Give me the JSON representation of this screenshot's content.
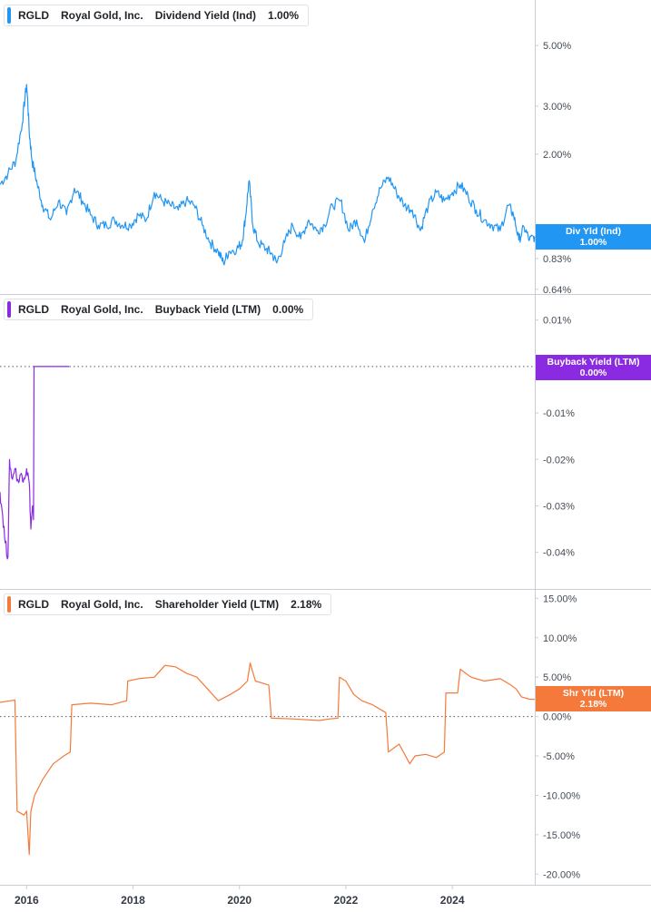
{
  "colors": {
    "div": "#2196f3",
    "buyback": "#8a2be2",
    "shareholder": "#f5793a",
    "axis": "#c9ced6"
  },
  "x_axis": {
    "ticks": [
      "2016",
      "2018",
      "2020",
      "2022",
      "2024"
    ],
    "range": [
      2015.5,
      2025.55
    ]
  },
  "panels": [
    {
      "id": "div",
      "legend": {
        "ticker": "RGLD",
        "company": "Royal Gold, Inc.",
        "metric": "Dividend Yield (Ind)",
        "value": "1.00%"
      },
      "tag": {
        "label": "Div Yld (Ind)",
        "value": "1.00%"
      }
    },
    {
      "id": "buyback",
      "legend": {
        "ticker": "RGLD",
        "company": "Royal Gold, Inc.",
        "metric": "Buyback Yield (LTM)",
        "value": "0.00%"
      },
      "tag": {
        "label": "Buyback Yield (LTM)",
        "value": "0.00%"
      }
    },
    {
      "id": "shareholder",
      "legend": {
        "ticker": "RGLD",
        "company": "Royal Gold, Inc.",
        "metric": "Shareholder Yield (LTM)",
        "value": "2.18%"
      },
      "tag": {
        "label": "Shr Yld (LTM)",
        "value": "2.18%"
      }
    }
  ],
  "chart_data": [
    {
      "type": "line",
      "scale": "log",
      "yticks": [
        "5.00%",
        "3.00%",
        "2.00%",
        "1.00%",
        "0.83%",
        "0.64%"
      ],
      "ytick_values": [
        5.0,
        3.0,
        2.0,
        1.0,
        0.83,
        0.64
      ],
      "ylim": [
        0.62,
        6.3
      ],
      "series": [
        {
          "name": "Dividend Yield (Ind)",
          "x": [
            2015.5,
            2015.65,
            2015.8,
            2015.92,
            2016.0,
            2016.05,
            2016.1,
            2016.2,
            2016.3,
            2016.45,
            2016.6,
            2016.75,
            2016.9,
            2017.05,
            2017.2,
            2017.35,
            2017.5,
            2017.65,
            2017.8,
            2017.95,
            2018.1,
            2018.25,
            2018.4,
            2018.55,
            2018.7,
            2018.85,
            2019.0,
            2019.15,
            2019.3,
            2019.45,
            2019.6,
            2019.7,
            2019.8,
            2019.95,
            2020.05,
            2020.12,
            2020.18,
            2020.25,
            2020.35,
            2020.5,
            2020.6,
            2020.7,
            2020.85,
            2021.0,
            2021.15,
            2021.3,
            2021.45,
            2021.6,
            2021.75,
            2021.9,
            2022.05,
            2022.2,
            2022.35,
            2022.5,
            2022.65,
            2022.8,
            2022.95,
            2023.1,
            2023.25,
            2023.4,
            2023.55,
            2023.7,
            2023.85,
            2024.0,
            2024.15,
            2024.3,
            2024.45,
            2024.6,
            2024.75,
            2024.9,
            2025.05,
            2025.15,
            2025.25,
            2025.35,
            2025.45,
            2025.55
          ],
          "values": [
            1.55,
            1.7,
            1.9,
            2.6,
            3.6,
            2.4,
            1.9,
            1.55,
            1.3,
            1.15,
            1.35,
            1.2,
            1.5,
            1.35,
            1.2,
            1.1,
            1.1,
            1.15,
            1.1,
            1.1,
            1.2,
            1.15,
            1.45,
            1.35,
            1.3,
            1.25,
            1.35,
            1.3,
            1.1,
            0.95,
            0.88,
            0.8,
            0.88,
            0.9,
            0.95,
            1.2,
            1.6,
            1.1,
            0.95,
            0.9,
            0.87,
            0.8,
            0.95,
            1.1,
            0.98,
            1.15,
            1.05,
            1.1,
            1.3,
            1.35,
            1.05,
            1.15,
            0.95,
            1.25,
            1.5,
            1.65,
            1.45,
            1.3,
            1.25,
            1.05,
            1.3,
            1.45,
            1.35,
            1.45,
            1.55,
            1.4,
            1.25,
            1.15,
            1.1,
            1.05,
            1.3,
            1.2,
            0.97,
            1.08,
            0.97,
            1.0
          ]
        }
      ]
    },
    {
      "type": "line",
      "yticks": [
        "0.01%",
        "-0.01%",
        "-0.02%",
        "-0.03%",
        "-0.04%"
      ],
      "ytick_values": [
        0.01,
        -0.01,
        -0.02,
        -0.03,
        -0.04
      ],
      "ylim": [
        -0.043,
        0.0115
      ],
      "zero_line": 0,
      "series": [
        {
          "name": "Buyback Yield (LTM)",
          "x": [
            2015.5,
            2015.55,
            2015.6,
            2015.65,
            2015.68,
            2015.72,
            2015.78,
            2015.85,
            2015.9,
            2015.95,
            2016.0,
            2016.05,
            2016.08,
            2016.11,
            2016.13,
            2016.14,
            2016.15,
            2016.25,
            2016.8
          ],
          "values": [
            -0.027,
            -0.032,
            -0.038,
            -0.041,
            -0.02,
            -0.024,
            -0.022,
            -0.025,
            -0.023,
            -0.024,
            -0.022,
            -0.025,
            -0.035,
            -0.03,
            -0.033,
            0.0,
            0.0,
            0.0,
            0.0
          ]
        }
      ]
    },
    {
      "type": "line",
      "yticks": [
        "15.00%",
        "10.00%",
        "5.00%",
        "0.00%",
        "-5.00%",
        "-10.00%",
        "-15.00%",
        "-20.00%"
      ],
      "ytick_values": [
        15,
        10,
        5,
        0,
        -5,
        -10,
        -15,
        -20
      ],
      "ylim": [
        -21,
        15.5
      ],
      "zero_line": 0,
      "series": [
        {
          "name": "Shareholder Yield (LTM)",
          "x": [
            2015.5,
            2015.7,
            2015.78,
            2015.82,
            2015.95,
            2016.0,
            2016.05,
            2016.08,
            2016.15,
            2016.3,
            2016.5,
            2016.7,
            2016.82,
            2016.85,
            2017.2,
            2017.6,
            2017.88,
            2017.9,
            2018.1,
            2018.4,
            2018.6,
            2018.8,
            2019.0,
            2019.2,
            2019.4,
            2019.6,
            2019.8,
            2020.0,
            2020.15,
            2020.2,
            2020.3,
            2020.45,
            2020.55,
            2020.6,
            2021.0,
            2021.5,
            2021.7,
            2021.85,
            2021.88,
            2022.0,
            2022.15,
            2022.3,
            2022.5,
            2022.75,
            2022.8,
            2023.0,
            2023.2,
            2023.3,
            2023.5,
            2023.7,
            2023.85,
            2023.88,
            2024.1,
            2024.15,
            2024.35,
            2024.6,
            2024.9,
            2025.1,
            2025.2,
            2025.3,
            2025.45,
            2025.55
          ],
          "values": [
            1.8,
            2.0,
            2.1,
            -12.0,
            -12.5,
            -12.0,
            -17.5,
            -12.0,
            -10.0,
            -8.0,
            -6.0,
            -5.0,
            -4.5,
            1.5,
            1.7,
            1.5,
            2.0,
            4.5,
            4.8,
            5.0,
            6.5,
            6.3,
            5.5,
            5.0,
            3.5,
            2.0,
            2.7,
            3.5,
            4.5,
            6.8,
            4.5,
            4.2,
            4.0,
            -0.2,
            -0.3,
            -0.5,
            -0.3,
            -0.2,
            5.0,
            4.5,
            2.8,
            2.0,
            1.5,
            0.5,
            -4.5,
            -3.5,
            -6.0,
            -5.0,
            -4.8,
            -5.2,
            -4.5,
            3.0,
            3.0,
            6.0,
            5.0,
            4.5,
            4.8,
            4.0,
            3.5,
            2.5,
            2.2,
            2.18
          ]
        }
      ]
    }
  ]
}
